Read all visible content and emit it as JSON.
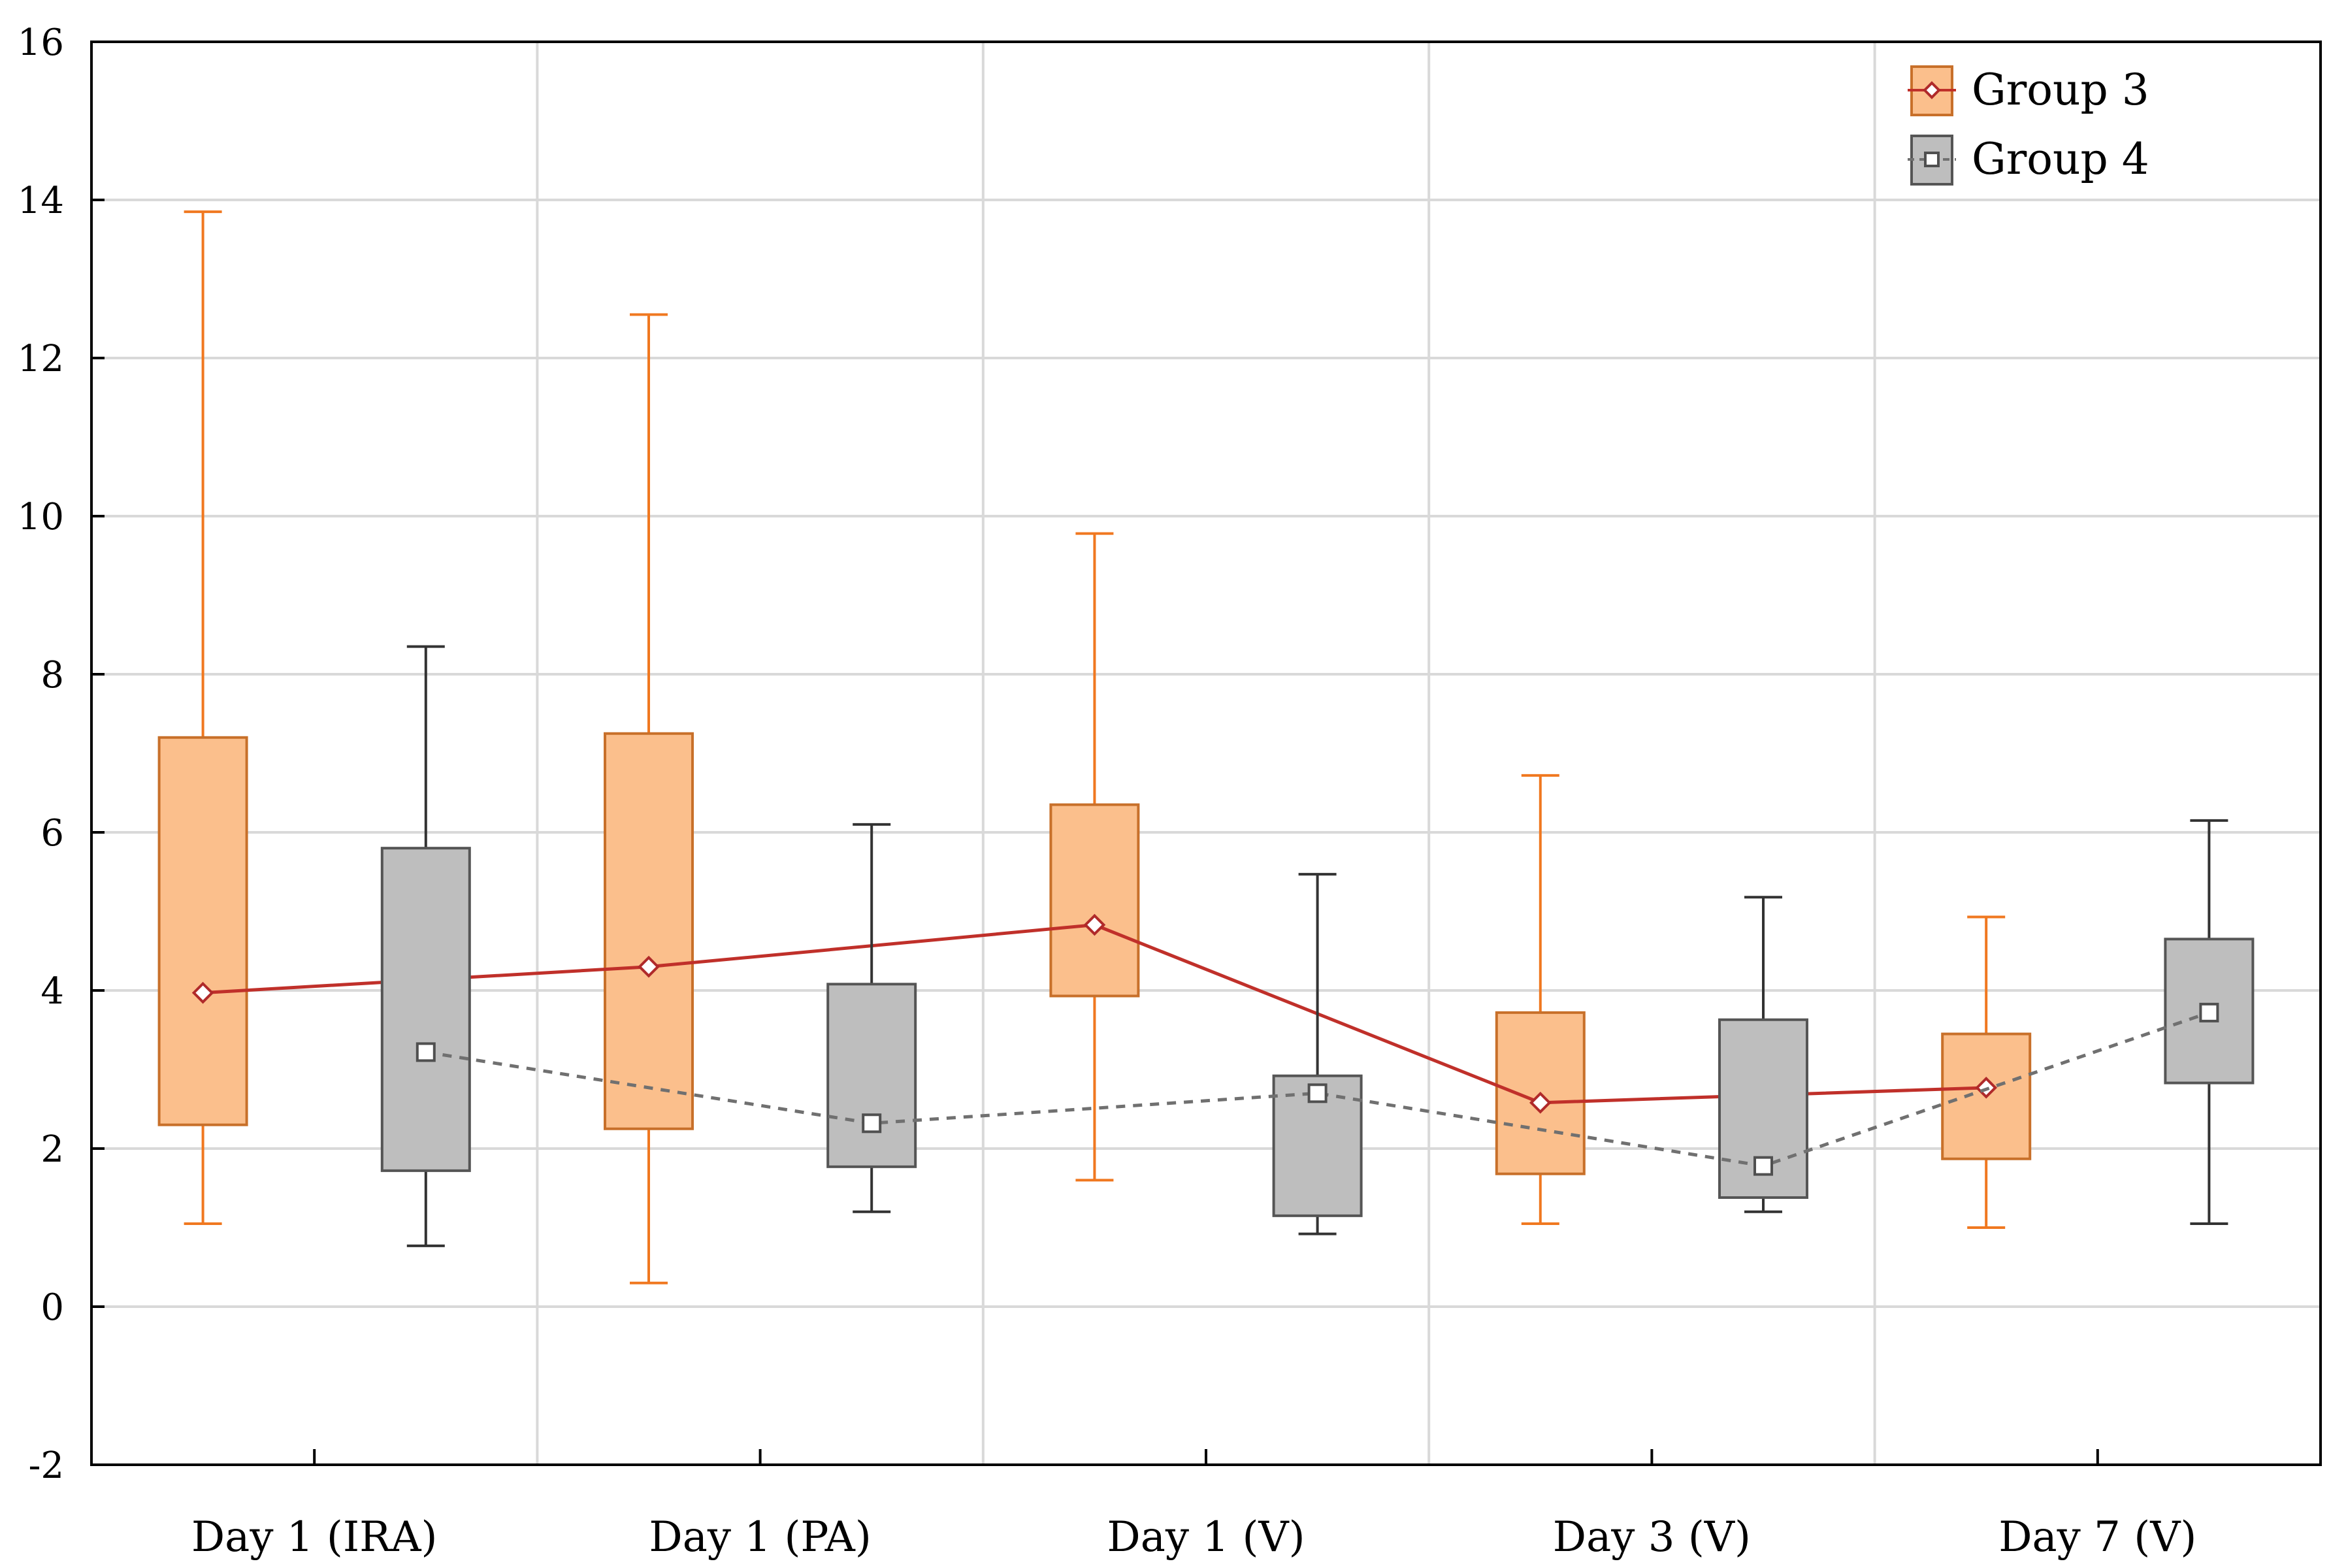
{
  "chart_data": {
    "type": "box",
    "title": "",
    "xlabel": "",
    "ylabel": "",
    "categories": [
      "Day 1 (IRA)",
      "Day 1 (PA)",
      "Day 1 (V)",
      "Day 3 (V)",
      "Day 7 (V)"
    ],
    "ylim": [
      -2,
      16
    ],
    "yticks": [
      "-2",
      "0",
      "2",
      "4",
      "6",
      "8",
      "10",
      "12",
      "14",
      "16"
    ],
    "grid": true,
    "legend_position": "top-right",
    "series": [
      {
        "name": "Group 3",
        "color": "#f07820",
        "fill": "#fbbf8c",
        "line_color": "#c0302a",
        "line_style": "solid",
        "marker": "diamond",
        "boxes": [
          {
            "whisker_low": 1.05,
            "q1": 2.3,
            "median": 3.97,
            "q3": 7.2,
            "whisker_high": 13.85
          },
          {
            "whisker_low": 0.3,
            "q1": 2.25,
            "median": 4.3,
            "q3": 7.25,
            "whisker_high": 12.55
          },
          {
            "whisker_low": 1.6,
            "q1": 3.93,
            "median": 4.83,
            "q3": 6.35,
            "whisker_high": 9.78
          },
          {
            "whisker_low": 1.05,
            "q1": 1.68,
            "median": 2.58,
            "q3": 3.72,
            "whisker_high": 6.72
          },
          {
            "whisker_low": 1.0,
            "q1": 1.87,
            "median": 2.77,
            "q3": 3.45,
            "whisker_high": 4.93
          }
        ]
      },
      {
        "name": "Group 4",
        "color": "#333333",
        "fill": "#bebebe",
        "line_color": "#707070",
        "line_style": "dashed",
        "marker": "square",
        "boxes": [
          {
            "whisker_low": 0.77,
            "q1": 1.72,
            "median": 3.22,
            "q3": 5.8,
            "whisker_high": 8.35
          },
          {
            "whisker_low": 1.2,
            "q1": 1.77,
            "median": 2.32,
            "q3": 4.08,
            "whisker_high": 6.1
          },
          {
            "whisker_low": 0.92,
            "q1": 1.15,
            "median": 2.7,
            "q3": 2.92,
            "whisker_high": 5.47
          },
          {
            "whisker_low": 1.2,
            "q1": 1.38,
            "median": 1.78,
            "q3": 3.63,
            "whisker_high": 5.18
          },
          {
            "whisker_low": 1.05,
            "q1": 2.83,
            "median": 3.72,
            "q3": 4.65,
            "whisker_high": 6.15
          }
        ]
      }
    ]
  }
}
